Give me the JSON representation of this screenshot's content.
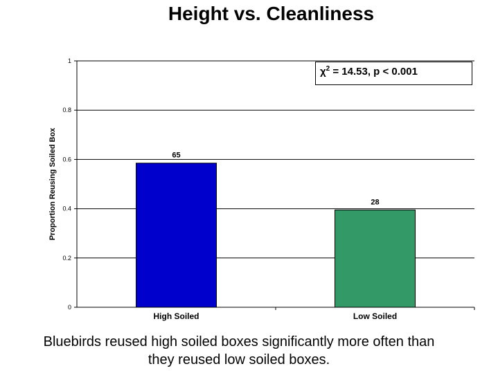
{
  "title": "Height vs. Cleanliness",
  "caption_line1": "Bluebirds reused high soiled boxes significantly more often than",
  "caption_line2": "they reused low soiled boxes.",
  "stat_box": {
    "chi_symbol": "χ",
    "chi_exponent": "2",
    "stat_text": " = 14.53, p < 0.001"
  },
  "chart_data": {
    "type": "bar",
    "title": "Height vs. Cleanliness",
    "xlabel": "",
    "ylabel": "Proportion Reusing Soiled Box",
    "ylim": [
      0,
      1
    ],
    "yticks": [
      "0",
      "0.2",
      "0.4",
      "0.6",
      "0.8",
      "1"
    ],
    "grid": true,
    "categories": [
      "High Soiled",
      "Low Soiled"
    ],
    "values": [
      0.585,
      0.395
    ],
    "data_labels": [
      "65",
      "28"
    ],
    "colors": [
      "#0000cc",
      "#339966"
    ]
  }
}
